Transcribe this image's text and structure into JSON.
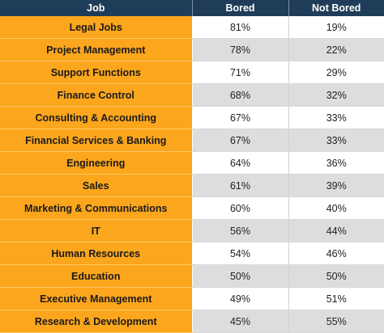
{
  "chart_data": {
    "type": "table",
    "columns": [
      "Job",
      "Bored",
      "Not Bored"
    ],
    "rows": [
      {
        "job": "Legal Jobs",
        "bored": "81%",
        "not_bored": "19%"
      },
      {
        "job": "Project Management",
        "bored": "78%",
        "not_bored": "22%"
      },
      {
        "job": "Support Functions",
        "bored": "71%",
        "not_bored": "29%"
      },
      {
        "job": "Finance Control",
        "bored": "68%",
        "not_bored": "32%"
      },
      {
        "job": "Consulting & Accounting",
        "bored": "67%",
        "not_bored": "33%"
      },
      {
        "job": "Financial Services & Banking",
        "bored": "67%",
        "not_bored": "33%"
      },
      {
        "job": "Engineering",
        "bored": "64%",
        "not_bored": "36%"
      },
      {
        "job": "Sales",
        "bored": "61%",
        "not_bored": "39%"
      },
      {
        "job": "Marketing & Communications",
        "bored": "60%",
        "not_bored": "40%"
      },
      {
        "job": "IT",
        "bored": "56%",
        "not_bored": "44%"
      },
      {
        "job": "Human Resources",
        "bored": "54%",
        "not_bored": "46%"
      },
      {
        "job": "Education",
        "bored": "50%",
        "not_bored": "50%"
      },
      {
        "job": "Executive Management",
        "bored": "49%",
        "not_bored": "51%"
      },
      {
        "job": "Research & Development",
        "bored": "45%",
        "not_bored": "55%"
      }
    ]
  },
  "colors": {
    "header_bg": "#1f3d58",
    "job_bg": "#fca61d",
    "row_alt_bg": "#dddddd"
  }
}
